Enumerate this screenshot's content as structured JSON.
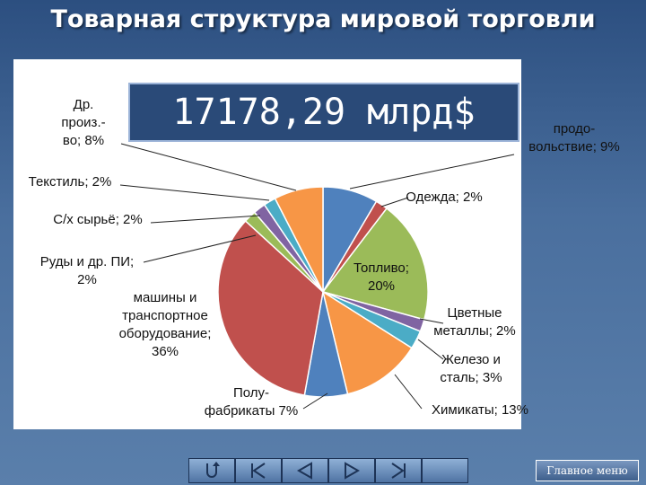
{
  "slide": {
    "title": "Товарная структура мировой торговли",
    "total": "17178,29 млрд$",
    "main_menu": "Главное меню"
  },
  "nav": {
    "icons": [
      "return-icon",
      "first-icon",
      "previous-icon",
      "next-icon",
      "last-icon"
    ]
  },
  "chart_data": {
    "type": "pie",
    "title": "",
    "start": "top",
    "direction": "clockwise",
    "slices": [
      {
        "lines": [
          "продо-",
          "вольствие; 9%"
        ],
        "value": 9,
        "color": "#4f81bd"
      },
      {
        "lines": [
          "Одежда; 2%"
        ],
        "value": 2,
        "color": "#c0504d"
      },
      {
        "lines": [
          "Топливо;",
          "20%"
        ],
        "value": 20,
        "color": "#9bbb59"
      },
      {
        "lines": [
          "Цветные",
          "металлы; 2%"
        ],
        "value": 2,
        "color": "#8064a2"
      },
      {
        "lines": [
          "Железо и",
          "сталь; 3%"
        ],
        "value": 3,
        "color": "#4bacc6"
      },
      {
        "lines": [
          "Химикаты; 13%"
        ],
        "value": 13,
        "color": "#f79646"
      },
      {
        "lines": [
          "Полу-",
          "фабрикаты 7%"
        ],
        "value": 7,
        "color": "#4f81bd"
      },
      {
        "lines": [
          "машины и",
          "транспортное",
          "оборудование;",
          "36%"
        ],
        "value": 36,
        "color": "#c0504d"
      },
      {
        "lines": [
          "Руды и др. ПИ;",
          "2%"
        ],
        "value": 2,
        "color": "#9bbb59"
      },
      {
        "lines": [
          "С/х сырьё; 2%"
        ],
        "value": 2,
        "color": "#8064a2"
      },
      {
        "lines": [
          "Текстиль; 2%"
        ],
        "value": 2,
        "color": "#4bacc6"
      },
      {
        "lines": [
          "Др.",
          "произ.-",
          "во; 8%"
        ],
        "value": 8,
        "color": "#f79646"
      }
    ]
  }
}
